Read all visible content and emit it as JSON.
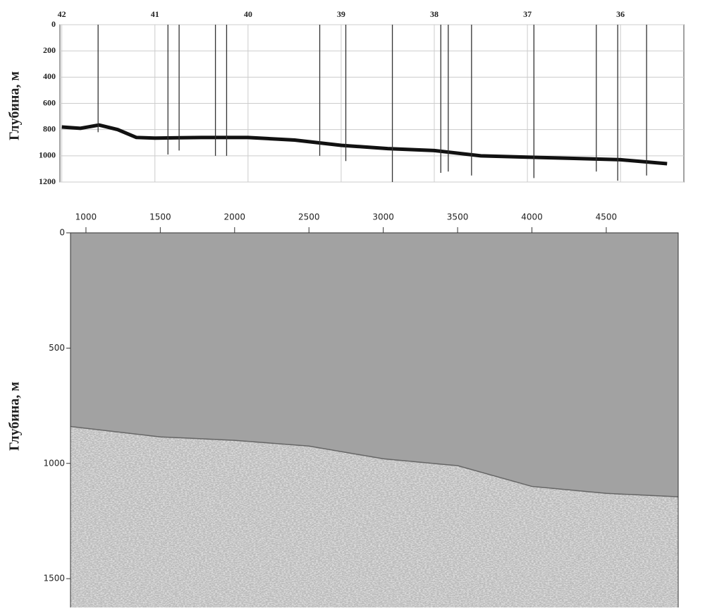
{
  "chart_data": [
    {
      "type": "line",
      "ylabel": "Глубина, м",
      "xlim": [
        42.02,
        35.32
      ],
      "xticks": [
        42,
        41,
        40,
        39,
        38,
        37,
        36
      ],
      "ylim": [
        0,
        1200
      ],
      "yticks": [
        0,
        200,
        400,
        600,
        800,
        1000,
        1200
      ],
      "grid": true,
      "series": [
        {
          "color": "#111111",
          "x": [
            42,
            41.8,
            41.6,
            41.4,
            41.2,
            41,
            40.5,
            40,
            39.5,
            39,
            38.5,
            38,
            37.5,
            37,
            36.5,
            36,
            35.5
          ],
          "values": [
            780,
            790,
            765,
            800,
            860,
            865,
            860,
            860,
            880,
            920,
            945,
            960,
            1000,
            1010,
            1020,
            1030,
            1060
          ]
        },
        {
          "color": "#333333",
          "type": "spikes",
          "x": [
            41.61,
            40.86,
            40.74,
            40.35,
            40.23,
            39.23,
            38.95,
            38.45,
            37.93,
            37.85,
            37.6,
            36.93,
            36.26,
            36.03,
            35.72
          ],
          "values": [
            820,
            990,
            960,
            1000,
            1000,
            1000,
            1040,
            1200,
            1130,
            1120,
            1150,
            1170,
            1120,
            1190,
            1150
          ]
        }
      ]
    },
    {
      "type": "section",
      "ylabel": "Глубина, м",
      "xlim": [
        896,
        4984
      ],
      "xticks": [
        1000,
        1500,
        2000,
        2500,
        3000,
        3500,
        4000,
        4500
      ],
      "ylim": [
        0,
        1625
      ],
      "yticks": [
        0,
        500,
        1000,
        1500
      ],
      "series": [
        {
          "color": "#a2a2a2",
          "x": [
            896,
            1500,
            2000,
            2500,
            3000,
            3500,
            4000,
            4500,
            4984
          ],
          "values": [
            840,
            885,
            900,
            925,
            980,
            1010,
            1100,
            1130,
            1145
          ]
        }
      ]
    }
  ]
}
